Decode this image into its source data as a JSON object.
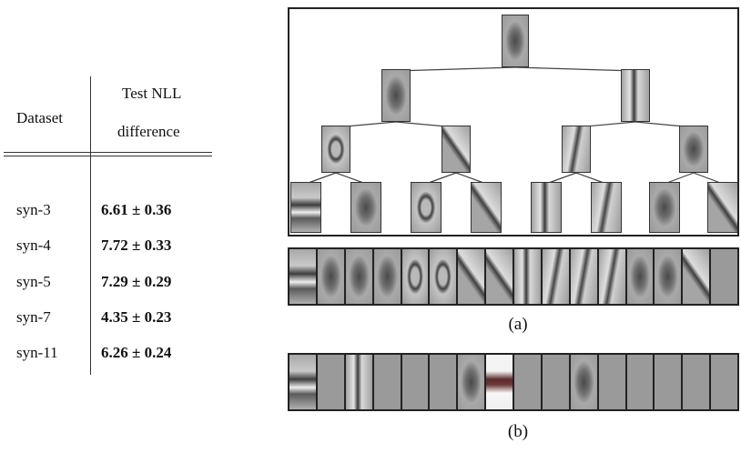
{
  "table": {
    "header_dataset": "Dataset",
    "header_nll_line1": "Test NLL",
    "header_nll_line2": "difference",
    "rows": [
      {
        "dataset": "syn-3",
        "value": "6.61 ± 0.36"
      },
      {
        "dataset": "syn-4",
        "value": "7.72 ± 0.33"
      },
      {
        "dataset": "syn-5",
        "value": "7.29 ± 0.29"
      },
      {
        "dataset": "syn-7",
        "value": "4.35 ± 0.23"
      },
      {
        "dataset": "syn-11",
        "value": "6.26 ± 0.24"
      }
    ]
  },
  "figure": {
    "caption_a": "(a)",
    "caption_b": "(b)",
    "tree_levels": [
      1,
      2,
      4,
      8
    ],
    "strip_a_cells": [
      "bar-h",
      "blob",
      "blob",
      "blob",
      "ring",
      "ring",
      "arc",
      "arc",
      "bar-v",
      "diag",
      "diag",
      "diag",
      "blob",
      "blob",
      "arc",
      "plain"
    ],
    "strip_b_cells": [
      "bar-h",
      "plain",
      "bar-v",
      "plain",
      "plain",
      "plain",
      "blob",
      "bright",
      "plain",
      "plain",
      "blob",
      "plain",
      "plain",
      "plain",
      "plain",
      "plain"
    ]
  }
}
